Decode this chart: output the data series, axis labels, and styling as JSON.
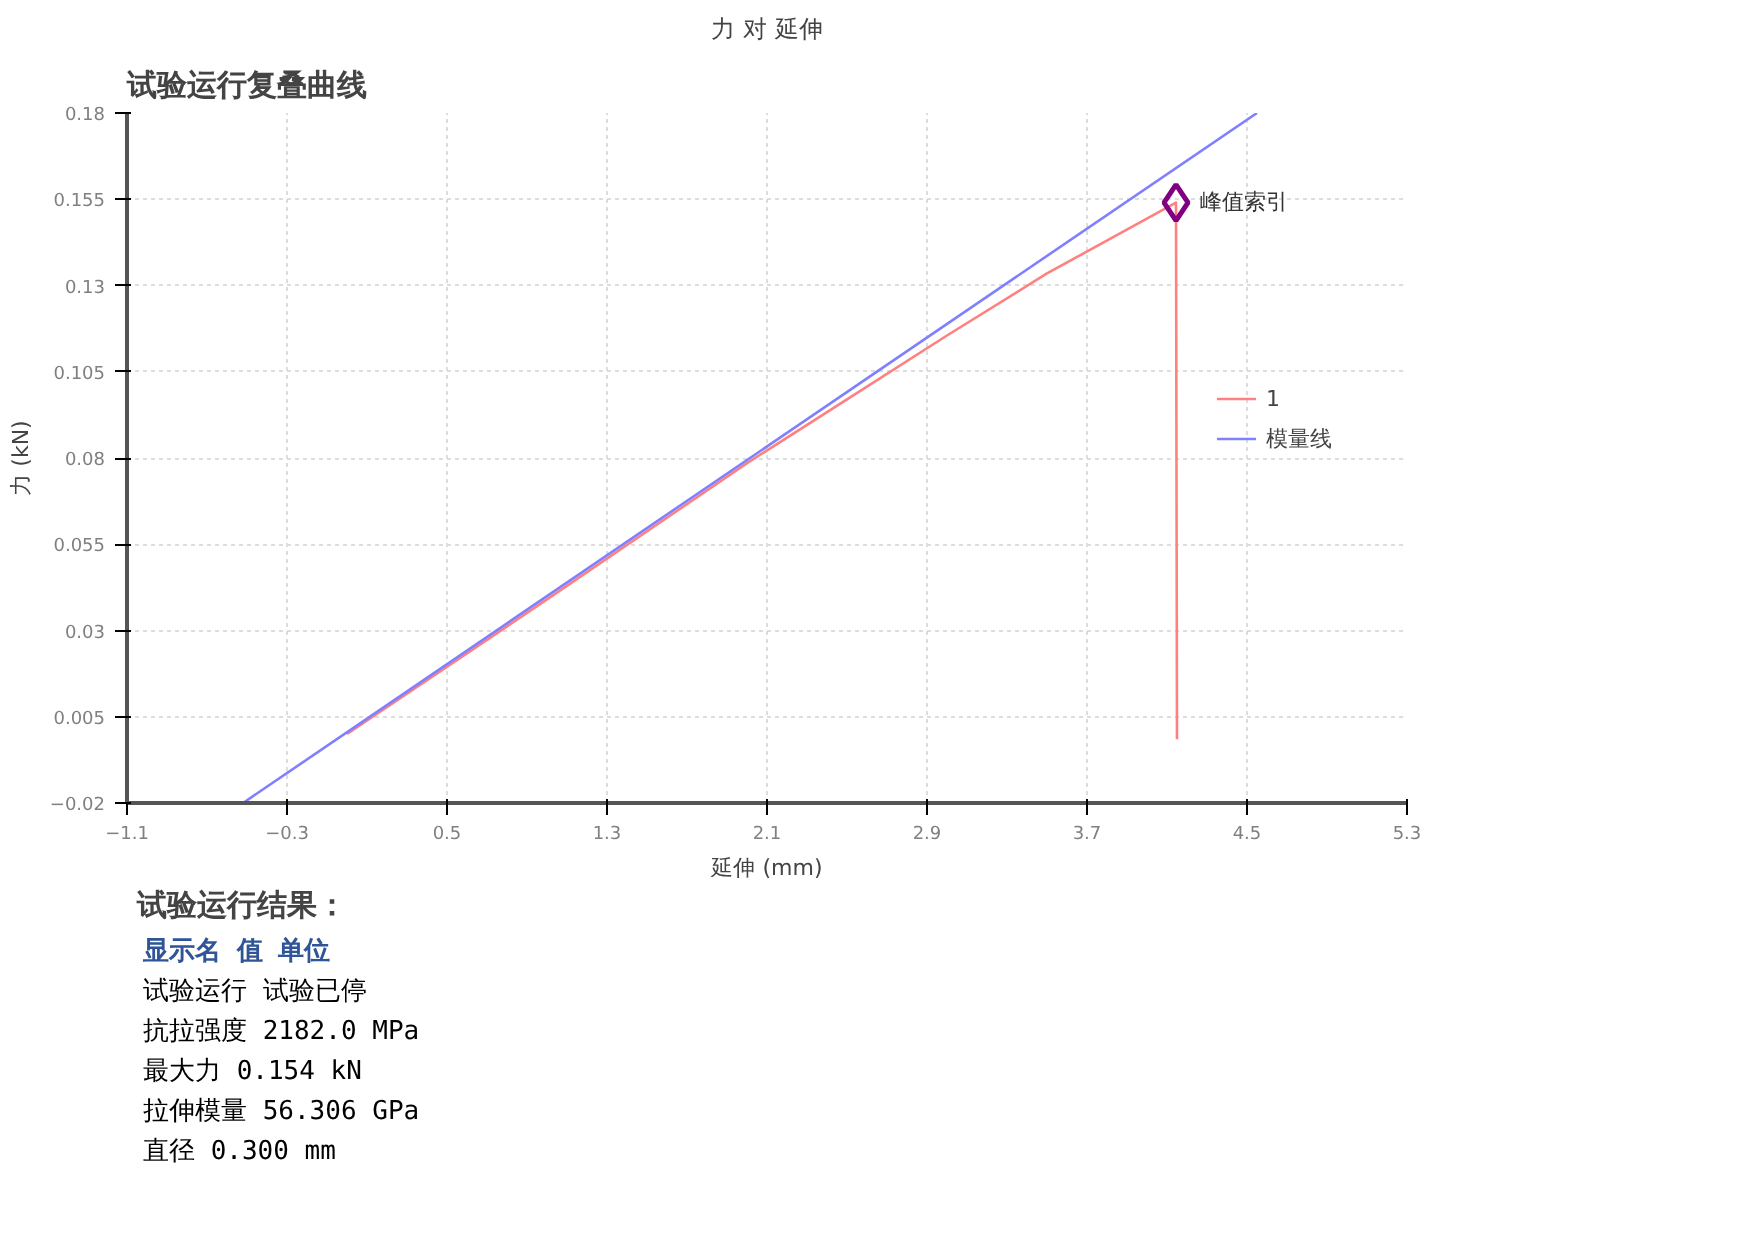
{
  "chart_data": {
    "type": "line",
    "title": "力 对 延伸",
    "xlabel": "延伸 (mm)",
    "ylabel": "力 (kN)",
    "xlim": [
      -1.1,
      5.3
    ],
    "ylim": [
      -0.02,
      0.18
    ],
    "xticks": [
      -1.1,
      -0.3,
      0.5,
      1.3,
      2.1,
      2.9,
      3.7,
      4.5,
      5.3
    ],
    "yticks": [
      -0.02,
      0.005,
      0.03,
      0.055,
      0.08,
      0.105,
      0.13,
      0.155,
      0.18
    ],
    "grid": true,
    "legend": "right",
    "line_style": "solid",
    "series": [
      {
        "name": "1",
        "color": "#ff8080",
        "x": [
          0,
          1,
          2,
          2.5,
          3,
          3.5,
          4.145,
          4.15
        ],
        "values": [
          0,
          0.039,
          0.0785,
          0.097,
          0.1155,
          0.1335,
          0.154,
          -0.0015
        ]
      },
      {
        "name": "模量线",
        "color": "#8080ff",
        "x": [
          -0.52,
          4.55
        ],
        "values": [
          -0.02,
          0.18
        ]
      }
    ],
    "annotations": [
      {
        "text": "峰值索引",
        "x": 4.145,
        "y": 0.154
      },
      "试验运行复叠曲线",
      "试验运行结果：",
      "显示名  值  单位",
      "试验运行  试验已停",
      "抗拉强度  2182.0  MPa",
      "最大力  0.154  kN",
      "拉伸模量  56.306  GPa",
      "直径  0.300  mm"
    ]
  }
}
